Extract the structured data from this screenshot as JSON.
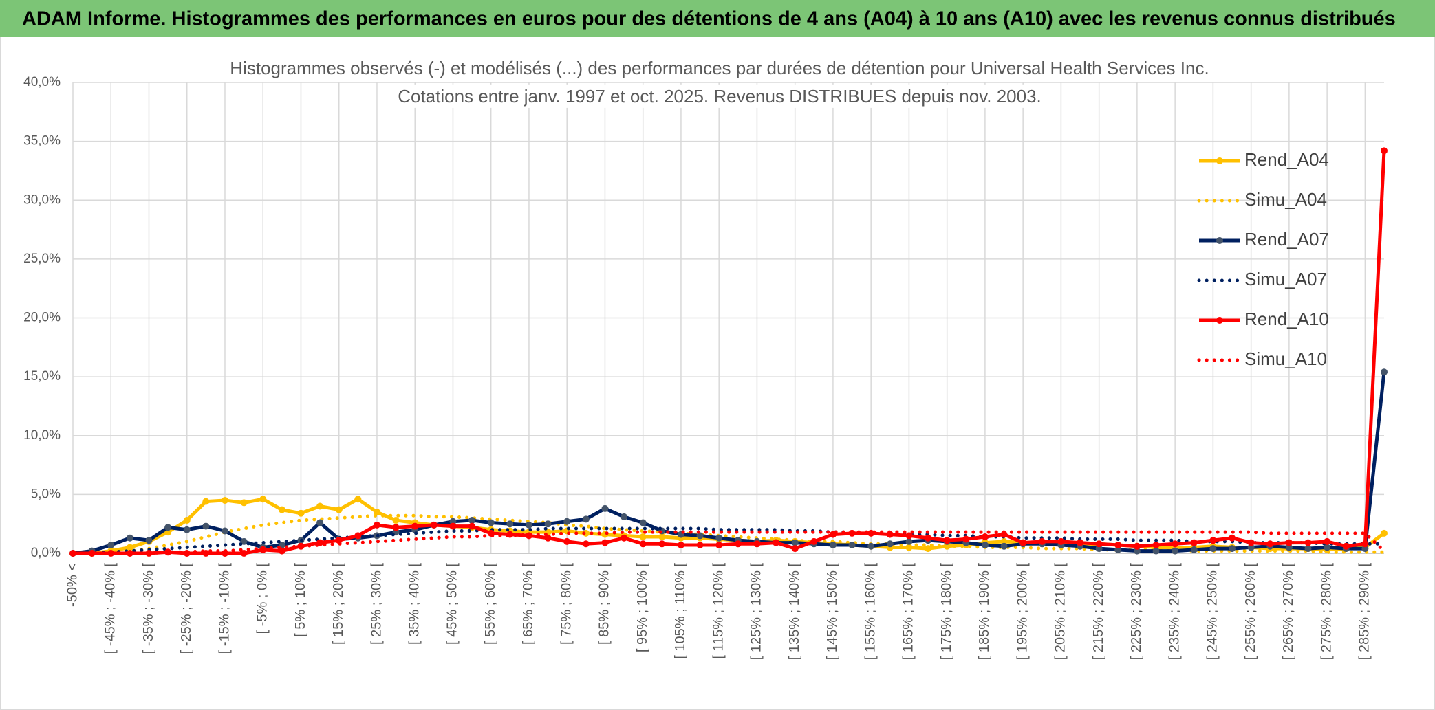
{
  "header": {
    "title": "ADAM Informe. Histogrammes des performances en euros pour des détentions de 4 ans (A04) à 10 ans (A10) avec les revenus connus distribués"
  },
  "chart_data": {
    "type": "line",
    "title": "Histogrammes observés (-) et modélisés (...) des performances par durées de détention pour Universal Health Services Inc.",
    "subtitle": "Cotations entre janv. 1997 et oct. 2025. Revenus DISTRIBUES depuis nov. 2003.",
    "categories": [
      "-50% <",
      null,
      "[ -45% ; -40% [",
      null,
      "[ -35% ; -30% [",
      null,
      "[ -25% ; -20% [",
      null,
      "[ -15% ; -10% [",
      null,
      "[ -5% ; 0% [",
      null,
      "[ 5% ; 10% [",
      null,
      "[ 15% ; 20% [",
      null,
      "[ 25% ; 30% [",
      null,
      "[ 35% ; 40% [",
      null,
      "[ 45% ; 50% [",
      null,
      "[ 55% ; 60% [",
      null,
      "[ 65% ; 70% [",
      null,
      "[ 75% ; 80% [",
      null,
      "[ 85% ; 90% [",
      null,
      "[ 95% ; 100% [",
      null,
      "[ 105% ; 110% [",
      null,
      "[ 115% ; 120% [",
      null,
      "[ 125% ; 130% [",
      null,
      "[ 135% ; 140% [",
      null,
      "[ 145% ; 150% [",
      null,
      "[ 155% ; 160% [",
      null,
      "[ 165% ; 170% [",
      null,
      "[ 175% ; 180% [",
      null,
      "[ 185% ; 190% [",
      null,
      "[ 195% ; 200% [",
      null,
      "[ 205% ; 210% [",
      null,
      "[ 215% ; 220% [",
      null,
      "[ 225% ; 230% [",
      null,
      "[ 235% ; 240% [",
      null,
      "[ 245% ; 250% [",
      null,
      "[ 255% ; 260% [",
      null,
      "[ 265% ; 270% [",
      null,
      "[ 275% ; 280% [",
      null,
      "[ 285% ; 290% [",
      null
    ],
    "series": [
      {
        "name": "Rend_A04",
        "color": "#ffc000",
        "style": "solid",
        "markers": true,
        "values": [
          0,
          0,
          0.2,
          0.5,
          1.0,
          1.8,
          2.8,
          4.4,
          4.5,
          4.3,
          4.6,
          3.7,
          3.4,
          4.0,
          3.7,
          4.6,
          3.5,
          2.8,
          2.6,
          2.4,
          2.3,
          2.2,
          2.0,
          1.9,
          1.8,
          1.8,
          1.9,
          1.7,
          1.6,
          1.5,
          1.4,
          1.4,
          1.3,
          1.3,
          1.2,
          1.1,
          1.0,
          1.1,
          1.0,
          0.9,
          0.8,
          0.7,
          0.6,
          0.5,
          0.5,
          0.4,
          0.6,
          0.7,
          0.9,
          1.0,
          0.9,
          0.8,
          0.7,
          0.7,
          0.8,
          0.7,
          0.6,
          0.5,
          0.5,
          0.5,
          0.6,
          0.5,
          0.5,
          0.4,
          0.4,
          0.4,
          0.3,
          0.4,
          0.5,
          1.7
        ]
      },
      {
        "name": "Simu_A04",
        "color": "#ffc000",
        "style": "dotted",
        "markers": false,
        "values": [
          0,
          0,
          0.1,
          0.2,
          0.4,
          0.7,
          1.0,
          1.4,
          1.8,
          2.1,
          2.4,
          2.6,
          2.8,
          2.9,
          3.0,
          3.1,
          3.2,
          3.2,
          3.2,
          3.1,
          3.1,
          3.0,
          2.9,
          2.8,
          2.7,
          2.6,
          2.4,
          2.3,
          2.1,
          2.0,
          1.9,
          1.8,
          1.7,
          1.6,
          1.5,
          1.4,
          1.3,
          1.2,
          1.1,
          1.0,
          1.0,
          0.9,
          0.8,
          0.8,
          0.7,
          0.7,
          0.6,
          0.6,
          0.5,
          0.5,
          0.5,
          0.4,
          0.4,
          0.4,
          0.3,
          0.3,
          0.3,
          0.3,
          0.3,
          0.2,
          0.2,
          0.2,
          0.2,
          0.2,
          0.2,
          0.2,
          0.1,
          0.1,
          0.1,
          0.1
        ]
      },
      {
        "name": "Rend_A07",
        "color": "#002060",
        "marker_color": "#44546a",
        "style": "solid",
        "markers": true,
        "values": [
          0,
          0.2,
          0.7,
          1.3,
          1.1,
          2.2,
          2.0,
          2.3,
          1.9,
          1.0,
          0.5,
          0.7,
          1.1,
          2.6,
          1.2,
          1.3,
          1.5,
          1.8,
          2.0,
          2.4,
          2.7,
          2.8,
          2.6,
          2.5,
          2.4,
          2.5,
          2.7,
          2.9,
          3.8,
          3.1,
          2.6,
          1.9,
          1.6,
          1.5,
          1.3,
          1.1,
          1.0,
          0.9,
          0.9,
          0.8,
          0.7,
          0.7,
          0.6,
          0.8,
          1.0,
          1.1,
          1.0,
          0.9,
          0.7,
          0.6,
          0.8,
          0.8,
          0.7,
          0.6,
          0.4,
          0.3,
          0.2,
          0.2,
          0.2,
          0.3,
          0.4,
          0.4,
          0.5,
          0.6,
          0.5,
          0.4,
          0.5,
          0.4,
          0.4,
          15.4
        ]
      },
      {
        "name": "Simu_A07",
        "color": "#002060",
        "style": "dotted",
        "markers": false,
        "values": [
          0,
          0,
          0.1,
          0.2,
          0.3,
          0.4,
          0.5,
          0.6,
          0.7,
          0.8,
          0.9,
          1.0,
          1.1,
          1.2,
          1.3,
          1.4,
          1.5,
          1.6,
          1.7,
          1.8,
          1.9,
          1.9,
          2.0,
          2.0,
          2.0,
          2.1,
          2.1,
          2.1,
          2.1,
          2.1,
          2.1,
          2.1,
          2.1,
          2.1,
          2.0,
          2.0,
          2.0,
          2.0,
          1.9,
          1.9,
          1.8,
          1.8,
          1.7,
          1.7,
          1.6,
          1.6,
          1.5,
          1.5,
          1.4,
          1.4,
          1.3,
          1.3,
          1.3,
          1.2,
          1.2,
          1.2,
          1.1,
          1.1,
          1.1,
          1.0,
          1.0,
          1.0,
          0.9,
          0.9,
          0.9,
          0.9,
          0.8,
          0.8,
          0.8,
          0.8
        ]
      },
      {
        "name": "Rend_A10",
        "color": "#ff0000",
        "style": "solid",
        "markers": true,
        "values": [
          0,
          0,
          0,
          0,
          0,
          0.1,
          0,
          0,
          0,
          0,
          0.3,
          0.2,
          0.6,
          0.9,
          1.1,
          1.5,
          2.4,
          2.2,
          2.3,
          2.4,
          2.3,
          2.3,
          1.7,
          1.6,
          1.5,
          1.3,
          1.0,
          0.8,
          0.9,
          1.3,
          0.8,
          0.8,
          0.7,
          0.7,
          0.7,
          0.8,
          0.8,
          0.9,
          0.4,
          1.0,
          1.6,
          1.7,
          1.7,
          1.6,
          1.5,
          1.3,
          1.1,
          1.2,
          1.4,
          1.6,
          0.9,
          1.0,
          1.0,
          0.9,
          0.8,
          0.7,
          0.6,
          0.7,
          0.8,
          0.9,
          1.1,
          1.3,
          0.9,
          0.8,
          0.9,
          0.9,
          1.0,
          0.6,
          0.8,
          34.2
        ]
      },
      {
        "name": "Simu_A10",
        "color": "#ff0000",
        "style": "dotted",
        "markers": false,
        "values": [
          0,
          0,
          0,
          0,
          0,
          0.1,
          0.1,
          0.2,
          0.2,
          0.3,
          0.4,
          0.5,
          0.6,
          0.7,
          0.8,
          0.9,
          1.0,
          1.1,
          1.2,
          1.3,
          1.4,
          1.4,
          1.5,
          1.5,
          1.6,
          1.6,
          1.7,
          1.7,
          1.7,
          1.8,
          1.8,
          1.8,
          1.8,
          1.8,
          1.8,
          1.8,
          1.8,
          1.8,
          1.8,
          1.8,
          1.8,
          1.8,
          1.8,
          1.8,
          1.8,
          1.8,
          1.8,
          1.8,
          1.8,
          1.8,
          1.8,
          1.8,
          1.8,
          1.8,
          1.8,
          1.8,
          1.8,
          1.8,
          1.8,
          1.8,
          1.8,
          1.8,
          1.8,
          1.7,
          1.7,
          1.7,
          1.7,
          1.7,
          1.7,
          0.2
        ]
      }
    ],
    "ylim": [
      0,
      40
    ],
    "yticks": [
      {
        "value": 0,
        "label": "0,0%"
      },
      {
        "value": 5,
        "label": "5,0%"
      },
      {
        "value": 10,
        "label": "10,0%"
      },
      {
        "value": 15,
        "label": "15,0%"
      },
      {
        "value": 20,
        "label": "20,0%"
      },
      {
        "value": 25,
        "label": "25,0%"
      },
      {
        "value": 30,
        "label": "30,0%"
      },
      {
        "value": 35,
        "label": "35,0%"
      },
      {
        "value": 40,
        "label": "40,0%"
      }
    ],
    "grid": true,
    "legend": "right"
  }
}
